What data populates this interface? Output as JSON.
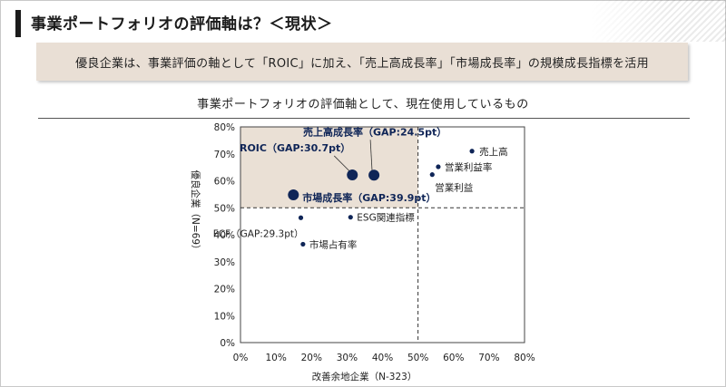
{
  "header": {
    "title": "事業ポートフォリオの評価軸は？＜現状＞"
  },
  "banner": {
    "text": "優良企業は、事業評価の軸として「ROIC」に加え、「売上高成長率」「市場成長率」の規模成長指標を活用"
  },
  "chart_data": {
    "type": "scatter",
    "title": "事業ポートフォリオの評価軸として、現在使用しているもの",
    "xlabel": "改善余地企業（N-323）",
    "ylabel": "優良企業（N=69）",
    "xlim": [
      0,
      80
    ],
    "ylim": [
      0,
      80
    ],
    "xticks": [
      "0%",
      "10%",
      "20%",
      "30%",
      "40%",
      "50%",
      "60%",
      "70%",
      "80%"
    ],
    "yticks": [
      "0%",
      "10%",
      "20%",
      "30%",
      "40%",
      "50%",
      "60%",
      "70%",
      "80%"
    ],
    "reference_lines": {
      "x": 50,
      "y": 50
    },
    "highlight_region": "x 0–50, y 50–80",
    "points": [
      {
        "label": "ROIC（GAP:30.7pt）",
        "x": 31.5,
        "y": 62.2,
        "highlight": true
      },
      {
        "label": "売上高成長率（GAP:24.5pt）",
        "x": 37.6,
        "y": 62.1,
        "highlight": true
      },
      {
        "label": "市場成長率（GAP:39.9pt）",
        "x": 14.9,
        "y": 54.8,
        "highlight": true
      },
      {
        "label": "売上高",
        "x": 65.2,
        "y": 71.0,
        "highlight": false
      },
      {
        "label": "営業利益率",
        "x": 55.7,
        "y": 65.2,
        "highlight": false
      },
      {
        "label": "営業利益",
        "x": 54.0,
        "y": 62.3,
        "highlight": false
      },
      {
        "label": "ESG関連指標",
        "x": 31.0,
        "y": 46.5,
        "highlight": false
      },
      {
        "label": "FCF（GAP:29.3pt）",
        "x": 17.0,
        "y": 46.3,
        "highlight": false
      },
      {
        "label": "市場占有率",
        "x": 17.6,
        "y": 36.5,
        "highlight": false
      }
    ],
    "colors": {
      "highlight": "#0f2557",
      "normal": "#0f2557",
      "region": "#eae0d5"
    }
  }
}
